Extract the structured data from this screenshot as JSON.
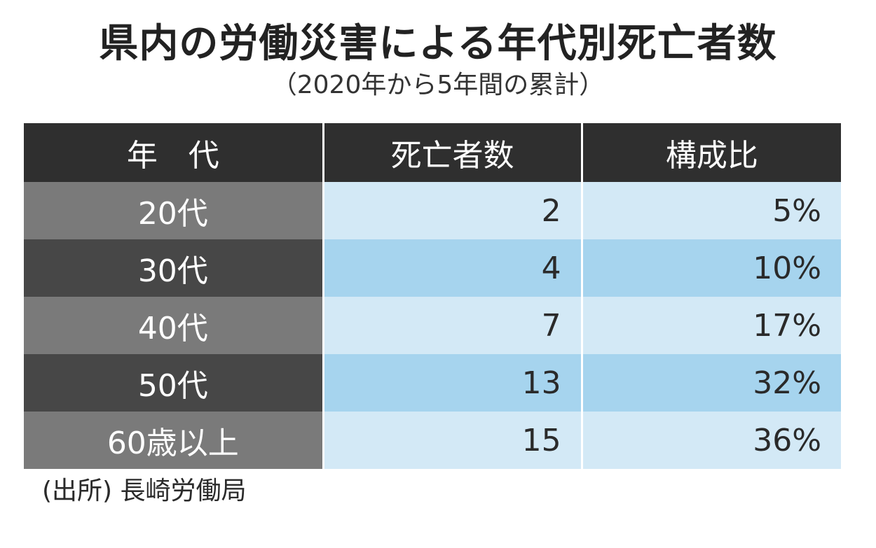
{
  "title": "県内の労働災害による年代別死亡者数",
  "subtitle": "（2020年から5年間の累計）",
  "source": "(出所) 長崎労働局",
  "table": {
    "headers": [
      "年　代",
      "死亡者数",
      "構成比"
    ],
    "rows": [
      {
        "age": "20代",
        "deaths": "2",
        "ratio": "5%"
      },
      {
        "age": "30代",
        "deaths": "4",
        "ratio": "10%"
      },
      {
        "age": "40代",
        "deaths": "7",
        "ratio": "17%"
      },
      {
        "age": "50代",
        "deaths": "13",
        "ratio": "32%"
      },
      {
        "age": "60歳以上",
        "deaths": "15",
        "ratio": "36%"
      }
    ]
  },
  "colors": {
    "header_bg": "#2f2f2f",
    "age_light": "#7a7a7a",
    "age_dark": "#474747",
    "value_light": "#d3e9f6",
    "value_dark": "#a6d4ee"
  },
  "chart_data": {
    "type": "table",
    "title": "県内の労働災害による年代別死亡者数",
    "subtitle": "（2020年から5年間の累計）",
    "columns": [
      "年　代",
      "死亡者数",
      "構成比"
    ],
    "categories": [
      "20代",
      "30代",
      "40代",
      "50代",
      "60歳以上"
    ],
    "series": [
      {
        "name": "死亡者数",
        "values": [
          2,
          4,
          7,
          13,
          15
        ]
      },
      {
        "name": "構成比",
        "values": [
          5,
          10,
          17,
          32,
          36
        ]
      }
    ]
  }
}
